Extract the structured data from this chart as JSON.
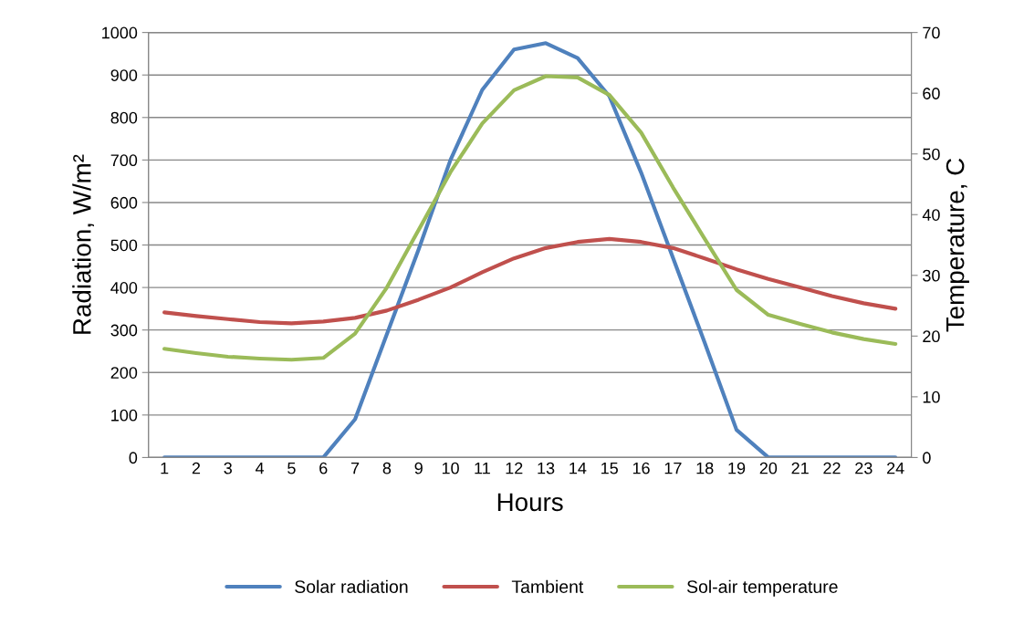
{
  "chart_data": {
    "type": "line",
    "xlabel": "Hours",
    "ylabel": "Radiation, W/m²",
    "y2label": "Temperature, C",
    "categories": [
      "1",
      "2",
      "3",
      "4",
      "5",
      "6",
      "7",
      "8",
      "9",
      "10",
      "11",
      "12",
      "13",
      "14",
      "15",
      "16",
      "17",
      "18",
      "19",
      "20",
      "21",
      "22",
      "23",
      "24"
    ],
    "series": [
      {
        "name": "Solar radiation",
        "color": "#4f81bd",
        "values": [
          0,
          0,
          0,
          0,
          0,
          0,
          90,
          290,
          490,
          700,
          865,
          960,
          975,
          940,
          850,
          670,
          470,
          270,
          65,
          0,
          0,
          0,
          0,
          0
        ]
      },
      {
        "name": "Tambient",
        "color": "#c0504d",
        "axis": "y2",
        "values": [
          23.9,
          23.3,
          22.8,
          22.3,
          22.1,
          22.4,
          23.0,
          24.2,
          26.0,
          28.0,
          30.5,
          32.8,
          34.5,
          35.5,
          36.0,
          35.5,
          34.5,
          32.8,
          31.0,
          29.4,
          28.0,
          26.6,
          25.4,
          24.5
        ]
      },
      {
        "name": "Sol-air temperature",
        "color": "#9bbb59",
        "axis": "y2",
        "values": [
          17.9,
          17.2,
          16.6,
          16.3,
          16.1,
          16.4,
          20.4,
          28.0,
          37.5,
          47.0,
          55.0,
          60.5,
          62.8,
          62.6,
          59.7,
          53.5,
          44.5,
          36.0,
          27.6,
          23.5,
          22.0,
          20.6,
          19.5,
          18.7
        ]
      }
    ],
    "ylim": [
      0,
      1000
    ],
    "yticks": [
      0,
      100,
      200,
      300,
      400,
      500,
      600,
      700,
      800,
      900,
      1000
    ],
    "y2lim": [
      0,
      70
    ],
    "y2ticks": [
      0,
      10,
      20,
      30,
      40,
      50,
      60,
      70
    ],
    "grid": "y",
    "legend": "bottom",
    "marker": "none",
    "line_style": "solid"
  }
}
